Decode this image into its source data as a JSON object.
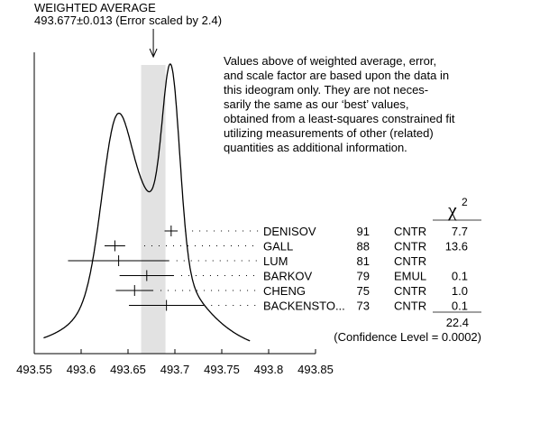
{
  "chart_data": {
    "type": "ideogram",
    "title": "WEIGHTED AVERAGE",
    "subtitle": "493.677±0.013 (Error scaled by 2.4)",
    "weighted_average": 493.677,
    "error": 0.013,
    "scale_factor": 2.4,
    "xlim": [
      493.55,
      493.85
    ],
    "xticks": [
      "493.55",
      "493.6",
      "493.65",
      "493.7",
      "493.75",
      "493.8",
      "493.85"
    ],
    "x_tick_values": [
      493.55,
      493.6,
      493.65,
      493.7,
      493.75,
      493.8,
      493.85
    ],
    "chi2_header": "χ",
    "chi2_sup": "2",
    "measurements": [
      {
        "name": "DENISOV",
        "year": "91",
        "tech": "CNTR",
        "chi2": "7.7",
        "value": 493.696,
        "err": 0.007
      },
      {
        "name": "GALL",
        "year": "88",
        "tech": "CNTR",
        "chi2": "13.6",
        "value": 493.636,
        "err": 0.011
      },
      {
        "name": "LUM",
        "year": "81",
        "tech": "CNTR",
        "chi2": "",
        "value": 493.64,
        "err": 0.054
      },
      {
        "name": "BARKOV",
        "year": "79",
        "tech": "EMUL",
        "chi2": "0.1",
        "value": 493.67,
        "err": 0.029
      },
      {
        "name": "CHENG",
        "year": "75",
        "tech": "CNTR",
        "chi2": "1.0",
        "value": 493.657,
        "err": 0.02
      },
      {
        "name": "BACKENSTO...",
        "year": "73",
        "tech": "CNTR",
        "chi2": "0.1",
        "value": 493.691,
        "err": 0.04
      }
    ],
    "chi2_total": "22.4",
    "confidence_level": "(Confidence Level = 0.0002)",
    "note_lines": [
      "Values above of weighted average, error,",
      "and scale factor are based upon the data in",
      "this ideogram only.  They are not neces-",
      "sarily the same as our ‘best’ values,",
      "obtained from a least-squares constrained fit",
      "utilizing measurements of other (related)",
      "quantities as additional information."
    ]
  }
}
